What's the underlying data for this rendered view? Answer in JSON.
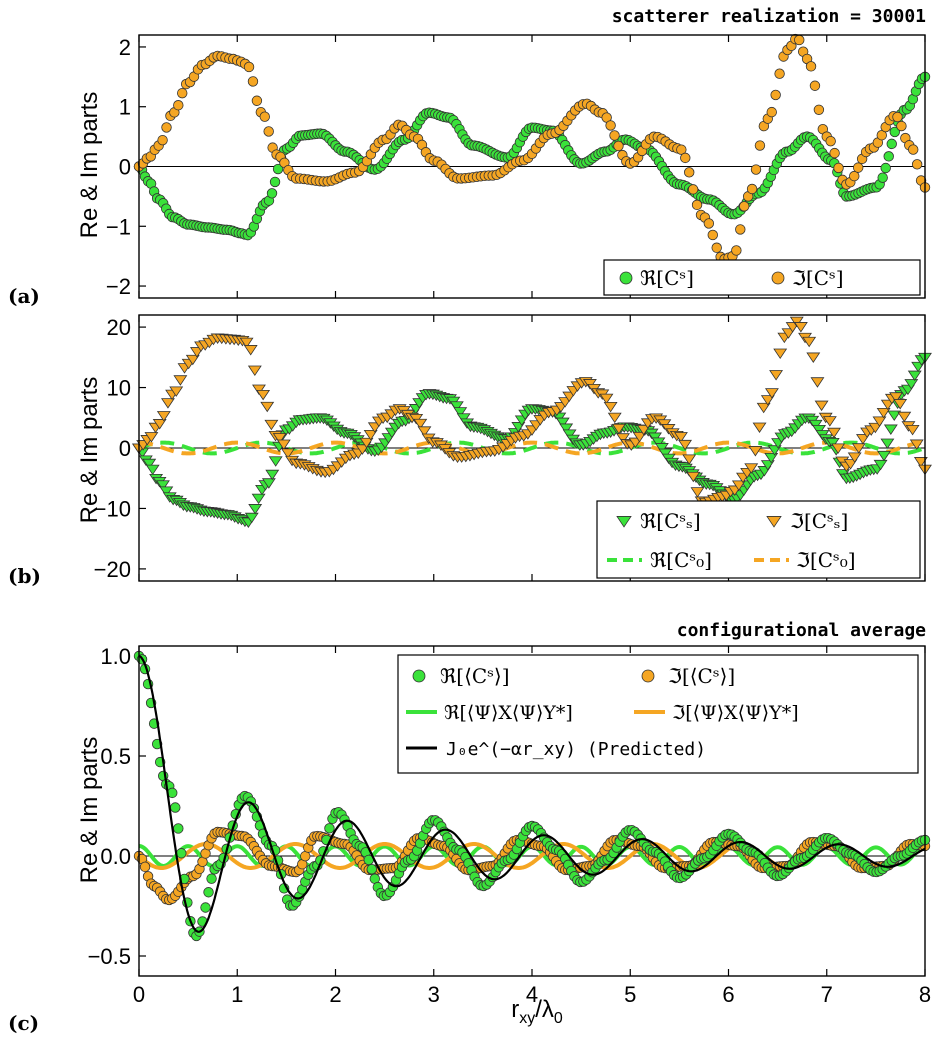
{
  "colors": {
    "green": "#3ae23a",
    "orange": "#f5a623",
    "black": "#000000"
  },
  "chart_data": [
    {
      "type": "scatter",
      "panel_label": "(a)",
      "header": "scatterer realization = 30001",
      "ylabel": "Re & Im parts",
      "xlim": [
        0,
        8
      ],
      "ylim": [
        -2.2,
        2.2
      ],
      "yticks": [
        "2",
        "1",
        "0",
        "−1",
        "−2"
      ],
      "yticks_values": [
        2,
        1,
        0,
        -1,
        -2
      ],
      "legend": {
        "placement": "bottom-right",
        "entries": [
          "ℜ[Cˢ]",
          "ℑ[Cˢ]"
        ]
      },
      "series": [
        {
          "name": "ℜ[Cˢ]",
          "marker": "circle",
          "color": "green",
          "x": [
            0,
            0.1,
            0.2,
            0.35,
            0.5,
            0.7,
            0.9,
            1.05,
            1.1,
            1.3,
            1.5,
            1.65,
            1.85,
            2.1,
            2.4,
            2.7,
            2.95,
            3.15,
            3.4,
            3.75,
            4.0,
            4.2,
            4.5,
            4.75,
            4.95,
            5.15,
            5.5,
            5.8,
            6.05,
            6.3,
            6.6,
            6.8,
            7.05,
            7.2,
            7.5,
            7.8,
            8.0
          ],
          "y": [
            0,
            -0.25,
            -0.55,
            -0.85,
            -0.97,
            -1.02,
            -1.06,
            -1.12,
            -1.15,
            -0.6,
            0.3,
            0.52,
            0.55,
            0.25,
            -0.05,
            0.45,
            0.9,
            0.82,
            0.35,
            0.15,
            0.65,
            0.6,
            0.05,
            0.25,
            0.45,
            0.3,
            -0.3,
            -0.55,
            -0.8,
            -0.45,
            0.25,
            0.5,
            0.1,
            -0.5,
            -0.35,
            0.95,
            1.5
          ]
        },
        {
          "name": "ℑ[Cˢ]",
          "marker": "circle",
          "color": "orange",
          "x": [
            0,
            0.1,
            0.2,
            0.35,
            0.5,
            0.65,
            0.8,
            0.95,
            1.05,
            1.1,
            1.25,
            1.4,
            1.6,
            1.9,
            2.2,
            2.5,
            2.65,
            2.8,
            3.0,
            3.25,
            3.6,
            3.9,
            4.2,
            4.55,
            4.7,
            5.0,
            5.25,
            5.5,
            5.75,
            5.95,
            6.05,
            6.2,
            6.4,
            6.6,
            6.7,
            6.8,
            7.0,
            7.2,
            7.45,
            7.7,
            7.85,
            8.0
          ],
          "y": [
            0,
            0.15,
            0.35,
            0.9,
            1.4,
            1.7,
            1.85,
            1.8,
            1.75,
            1.7,
            0.9,
            0.2,
            -0.2,
            -0.25,
            -0.1,
            0.45,
            0.7,
            0.5,
            0.1,
            -0.2,
            -0.15,
            0.1,
            0.55,
            1.05,
            0.9,
            0.05,
            0.5,
            0.3,
            -0.85,
            -1.55,
            -1.5,
            -0.5,
            0.8,
            1.95,
            2.15,
            1.8,
            0.5,
            -0.3,
            0.3,
            0.85,
            0.35,
            -0.35
          ]
        }
      ]
    },
    {
      "type": "scatter",
      "panel_label": "(b)",
      "ylabel": "Re & Im parts",
      "xlim": [
        0,
        8
      ],
      "ylim": [
        -22,
        22
      ],
      "yticks": [
        "20",
        "10",
        "0",
        "−10",
        "−20"
      ],
      "yticks_values": [
        20,
        10,
        0,
        -10,
        -20
      ],
      "legend": {
        "placement": "bottom-right",
        "entries": [
          "ℜ[Cˢₛ]",
          "ℑ[Cˢₛ]",
          "ℜ[Cˢ₀]",
          "ℑ[Cˢ₀]"
        ]
      },
      "series": [
        {
          "name": "ℜ[Cˢₛ]",
          "marker": "triangle-down",
          "color": "green",
          "x": [
            0,
            0.1,
            0.2,
            0.35,
            0.5,
            0.7,
            0.9,
            1.05,
            1.1,
            1.3,
            1.5,
            1.65,
            1.85,
            2.1,
            2.4,
            2.7,
            2.95,
            3.15,
            3.4,
            3.75,
            4.0,
            4.2,
            4.5,
            4.75,
            4.95,
            5.15,
            5.5,
            5.8,
            6.05,
            6.3,
            6.6,
            6.8,
            7.05,
            7.2,
            7.5,
            7.8,
            8.0
          ],
          "y": [
            0,
            -2.5,
            -5.5,
            -8.5,
            -9.7,
            -10.5,
            -11,
            -11.8,
            -12.3,
            -6,
            3,
            4.7,
            5,
            2.5,
            -0.5,
            4.5,
            9,
            8.2,
            3.5,
            1.5,
            6.5,
            6,
            0.5,
            2.5,
            3.5,
            3,
            -3,
            -6,
            -8.5,
            -4.5,
            2.5,
            5,
            1,
            -5,
            -3.5,
            9.5,
            15
          ]
        },
        {
          "name": "ℑ[Cˢₛ]",
          "marker": "triangle-down",
          "color": "orange",
          "x": [
            0,
            0.1,
            0.2,
            0.35,
            0.5,
            0.65,
            0.8,
            0.95,
            1.05,
            1.1,
            1.25,
            1.4,
            1.6,
            1.9,
            2.2,
            2.5,
            2.65,
            2.8,
            3.0,
            3.25,
            3.6,
            3.9,
            4.2,
            4.55,
            4.7,
            5.0,
            5.25,
            5.5,
            5.75,
            5.95,
            6.05,
            6.2,
            6.4,
            6.6,
            6.7,
            6.8,
            7.0,
            7.2,
            7.45,
            7.7,
            7.85,
            8.0
          ],
          "y": [
            0,
            1.5,
            4,
            9,
            14,
            17,
            18.2,
            18,
            17.8,
            17.5,
            9,
            2,
            -2.5,
            -4,
            -1,
            5,
            6.5,
            5,
            1,
            -1.5,
            -0.5,
            2,
            6,
            11,
            9,
            0.5,
            5,
            2,
            -9,
            -8,
            -7,
            -4,
            8,
            19,
            21,
            18,
            5,
            -3,
            3,
            8.5,
            3.5,
            -3.5
          ]
        },
        {
          "name": "ℜ[Cˢ₀]",
          "line": "dashed",
          "color": "green",
          "approx": "oscillation amplitude ≈ 1, period ≈ 1"
        },
        {
          "name": "ℑ[Cˢ₀]",
          "line": "dashed",
          "color": "orange",
          "approx": "oscillation amplitude ≈ 1, period ≈ 1"
        }
      ]
    },
    {
      "type": "line",
      "panel_label": "(c)",
      "header": "configurational average",
      "ylabel": "Re & Im parts",
      "xlabel": "r_xy/λ_0",
      "xlim": [
        0,
        8
      ],
      "ylim": [
        -0.6,
        1.05
      ],
      "xticks": [
        "0",
        "1",
        "2",
        "3",
        "4",
        "5",
        "6",
        "7",
        "8"
      ],
      "xticks_values": [
        0,
        1,
        2,
        3,
        4,
        5,
        6,
        7,
        8
      ],
      "yticks": [
        "1.0",
        "0.5",
        "0.0",
        "−0.5"
      ],
      "yticks_values": [
        1.0,
        0.5,
        0.0,
        -0.5
      ],
      "legend": {
        "placement": "top-right",
        "entries": [
          "ℜ[⟨Cˢ⟩]",
          "ℑ[⟨Cˢ⟩]",
          "ℜ[⟨Ψ⟩X⟨Ψ⟩Y*]",
          "ℑ[⟨Ψ⟩X⟨Ψ⟩Y*]",
          "J₀e^(−αr_xy) (Predicted)"
        ]
      },
      "series": [
        {
          "name": "ℜ[⟨Cˢ⟩]",
          "marker": "circle",
          "color": "green",
          "x": [
            0,
            0.3,
            0.58,
            0.8,
            1.08,
            1.35,
            1.55,
            1.8,
            2.02,
            2.25,
            2.5,
            2.75,
            3.0,
            3.25,
            3.5,
            3.75,
            4.0,
            4.25,
            4.5,
            4.75,
            5.0,
            5.25,
            5.5,
            5.75,
            6.0,
            6.25,
            6.5,
            6.75,
            7.0,
            7.25,
            7.5,
            7.75,
            8.0
          ],
          "y": [
            1.0,
            0.35,
            -0.4,
            -0.05,
            0.3,
            0.05,
            -0.25,
            -0.05,
            0.22,
            0.05,
            -0.2,
            -0.02,
            0.18,
            0.03,
            -0.15,
            -0.02,
            0.15,
            0.03,
            -0.13,
            -0.02,
            0.13,
            0.02,
            -0.11,
            -0.01,
            0.11,
            0.02,
            -0.1,
            -0.01,
            0.09,
            0.01,
            -0.08,
            0.0,
            0.08
          ]
        },
        {
          "name": "ℑ[⟨Cˢ⟩]",
          "marker": "circle",
          "color": "orange",
          "x": [
            0,
            0.15,
            0.3,
            0.55,
            0.8,
            1.05,
            1.35,
            1.6,
            1.8,
            2.1,
            2.35,
            2.6,
            2.85,
            3.1,
            3.35,
            3.6,
            3.85,
            4.1,
            4.35,
            4.6,
            4.85,
            5.1,
            5.35,
            5.6,
            5.85,
            6.1,
            6.35,
            6.6,
            6.85,
            7.1,
            7.35,
            7.6,
            7.85,
            8.0
          ],
          "y": [
            0,
            -0.15,
            -0.22,
            -0.1,
            0.12,
            0.1,
            -0.05,
            -0.08,
            0.1,
            0.06,
            -0.07,
            -0.06,
            0.09,
            0.05,
            -0.07,
            -0.05,
            0.08,
            0.05,
            -0.07,
            -0.05,
            0.08,
            0.05,
            -0.06,
            -0.05,
            0.07,
            0.05,
            -0.06,
            -0.05,
            0.07,
            0.05,
            -0.06,
            -0.05,
            0.06,
            0.05
          ]
        },
        {
          "name": "ℜ[⟨Ψ⟩X⟨Ψ⟩Y*]",
          "line": "solid",
          "color": "green",
          "approx": "amplitude ≈ 0.05, period ≈ 0.5"
        },
        {
          "name": "ℑ[⟨Ψ⟩X⟨Ψ⟩Y*]",
          "line": "solid",
          "color": "orange",
          "approx": "amplitude ≈ 0.06, period ≈ 0.9"
        },
        {
          "name": "J₀e^(−αr_xy) (Predicted)",
          "line": "solid",
          "color": "black",
          "approx": "damped Bessel J0(2πx)·e^(−0.1x)"
        }
      ]
    }
  ]
}
